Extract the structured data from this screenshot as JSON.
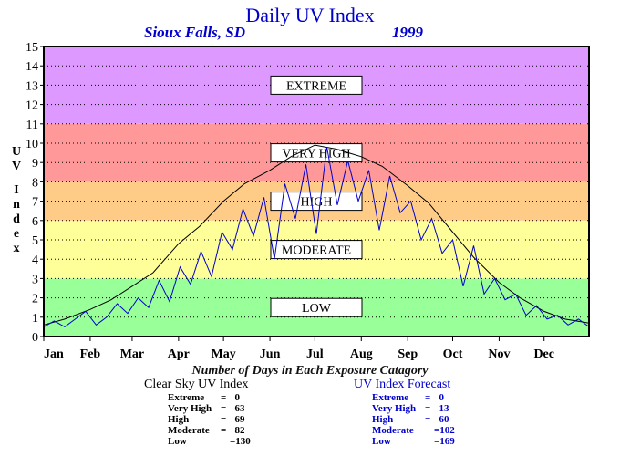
{
  "header": {
    "title": "Daily UV Index",
    "location": "Sioux Falls, SD",
    "year": "1999"
  },
  "chart_data": {
    "type": "line",
    "ylabel": "UV Index",
    "ylim": [
      0,
      15
    ],
    "yticks": [
      0,
      1,
      2,
      3,
      4,
      5,
      6,
      7,
      8,
      9,
      10,
      11,
      12,
      13,
      14,
      15
    ],
    "months": [
      "Jan",
      "Feb",
      "Mar",
      "Apr",
      "May",
      "Jun",
      "Jul",
      "Aug",
      "Sep",
      "Oct",
      "Nov",
      "Dec"
    ],
    "grid": "dotted horizontal at each integer",
    "bands": [
      {
        "label": "LOW",
        "from": 0,
        "to": 3,
        "color": "#99ff99"
      },
      {
        "label": "MODERATE",
        "from": 3,
        "to": 6,
        "color": "#ffff99"
      },
      {
        "label": "HIGH",
        "from": 6,
        "to": 8,
        "color": "#ffcc88"
      },
      {
        "label": "VERY HIGH",
        "from": 8,
        "to": 11,
        "color": "#ff9999"
      },
      {
        "label": "EXTREME",
        "from": 11,
        "to": 15,
        "color": "#dd99ff"
      }
    ],
    "series": [
      {
        "name": "Clear Sky UV Index",
        "color": "#000000",
        "x": [
          1,
          15,
          32,
          46,
          60,
          74,
          91,
          105,
          121,
          135,
          152,
          166,
          182,
          196,
          213,
          227,
          244,
          258,
          274,
          288,
          305,
          319,
          335,
          349,
          365
        ],
        "values": [
          0.6,
          0.9,
          1.4,
          1.9,
          2.6,
          3.3,
          4.8,
          5.7,
          7.0,
          7.9,
          8.6,
          9.3,
          9.9,
          9.7,
          9.3,
          8.8,
          7.8,
          6.9,
          5.4,
          4.1,
          2.8,
          2.0,
          1.3,
          0.9,
          0.7
        ]
      },
      {
        "name": "UV Index Forecast",
        "color": "#0000cc",
        "x": [
          1,
          8,
          15,
          22,
          29,
          36,
          43,
          50,
          57,
          64,
          71,
          78,
          85,
          92,
          99,
          106,
          113,
          120,
          127,
          134,
          141,
          148,
          155,
          162,
          169,
          176,
          183,
          190,
          197,
          204,
          211,
          218,
          225,
          232,
          239,
          246,
          253,
          260,
          267,
          274,
          281,
          288,
          295,
          302,
          309,
          316,
          323,
          330,
          337,
          344,
          351,
          358,
          365
        ],
        "values": [
          0.5,
          0.8,
          0.5,
          0.9,
          1.3,
          0.6,
          1.0,
          1.7,
          1.2,
          2.0,
          1.5,
          2.9,
          1.8,
          3.6,
          2.7,
          4.4,
          3.1,
          5.4,
          4.5,
          6.6,
          5.2,
          7.2,
          4.0,
          7.9,
          6.1,
          8.9,
          5.3,
          9.8,
          6.8,
          9.1,
          7.0,
          8.6,
          5.5,
          8.3,
          6.4,
          7.0,
          5.0,
          6.1,
          4.3,
          5.0,
          2.6,
          4.7,
          2.2,
          3.0,
          1.9,
          2.2,
          1.1,
          1.6,
          0.9,
          1.1,
          0.6,
          0.9,
          0.5
        ]
      }
    ]
  },
  "summary": {
    "caption": "Number of Days in Each Exposure Catagory",
    "clear": {
      "title": "Clear Sky UV Index",
      "rows": [
        {
          "label": "Extreme",
          "value": "0"
        },
        {
          "label": "Very High",
          "value": "63"
        },
        {
          "label": "High",
          "value": "69"
        },
        {
          "label": "Moderate",
          "value": "82"
        },
        {
          "label": "Low",
          "value": "=130"
        }
      ]
    },
    "forecast": {
      "title": "UV Index Forecast",
      "rows": [
        {
          "label": "Extreme",
          "value": "0"
        },
        {
          "label": "Very High",
          "value": "13"
        },
        {
          "label": "High",
          "value": "60"
        },
        {
          "label": "Moderate",
          "value": "=102"
        },
        {
          "label": "Low",
          "value": "=169"
        }
      ]
    }
  }
}
